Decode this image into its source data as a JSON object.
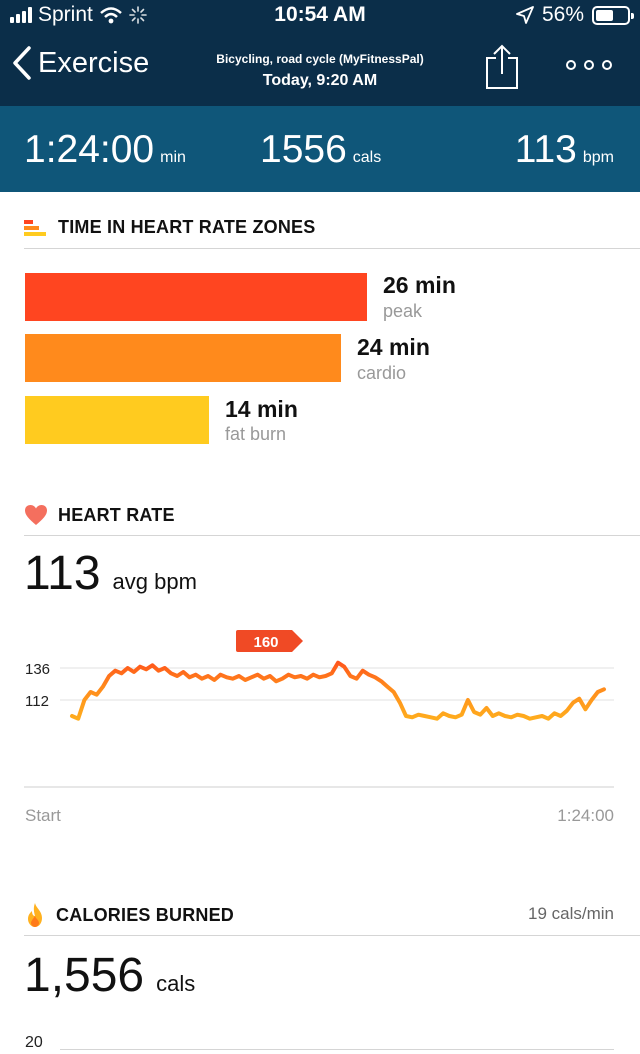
{
  "status_bar": {
    "carrier": "Sprint",
    "time": "10:54 AM",
    "battery": "56%",
    "battery_level": 0.56
  },
  "nav": {
    "back_label": "Exercise",
    "subtitle": "Bicycling, road cycle (MyFitnessPal)",
    "title": "Today, 9:20 AM"
  },
  "summary": {
    "duration": "1:24:00",
    "duration_unit": "min",
    "calories": "1556",
    "calories_unit": "cals",
    "heart_rate": "113",
    "heart_rate_unit": "bpm"
  },
  "zones": {
    "heading": "TIME IN HEART RATE ZONES",
    "items": [
      {
        "value": "26 min",
        "label": "peak",
        "minutes": 26,
        "color": "#ff4520"
      },
      {
        "value": "24 min",
        "label": "cardio",
        "minutes": 24,
        "color": "#ff8a1c"
      },
      {
        "value": "14 min",
        "label": "fat burn",
        "minutes": 14,
        "color": "#ffcb1f"
      }
    ]
  },
  "heart_rate": {
    "heading": "HEART RATE",
    "avg": "113",
    "avg_unit": "avg bpm",
    "peak_label": "160",
    "y_ticks": [
      "136",
      "112"
    ],
    "start_label": "Start",
    "end_label": "1:24:00"
  },
  "calories": {
    "heading": "CALORIES BURNED",
    "rate": "19 cals/min",
    "total": "1,556",
    "unit": "cals",
    "y_tick": "20"
  },
  "chart_data": {
    "type": "line",
    "title": "",
    "xlabel": "",
    "ylabel": "",
    "x_range": [
      "Start",
      "1:24:00"
    ],
    "y_ticks": [
      136,
      112
    ],
    "peak_marker": 160,
    "series": [
      {
        "values": [
          100,
          98,
          112,
          118,
          116,
          122,
          130,
          134,
          132,
          136,
          133,
          137,
          135,
          138,
          134,
          136,
          132,
          130,
          133,
          129,
          131,
          128,
          130,
          127,
          131,
          129,
          128,
          130,
          127,
          129,
          131,
          128,
          130,
          126,
          128,
          131,
          129,
          130,
          128,
          131,
          129,
          130,
          132,
          140,
          137,
          130,
          128,
          134,
          131,
          129,
          126,
          122,
          118,
          110,
          100,
          99,
          101,
          100,
          99,
          98,
          102,
          100,
          99,
          101,
          112,
          103,
          101,
          106,
          100,
          102,
          100,
          99,
          101,
          100,
          98,
          99,
          100,
          98,
          102,
          100,
          104,
          110,
          113,
          105,
          112,
          118,
          120
        ]
      }
    ]
  }
}
